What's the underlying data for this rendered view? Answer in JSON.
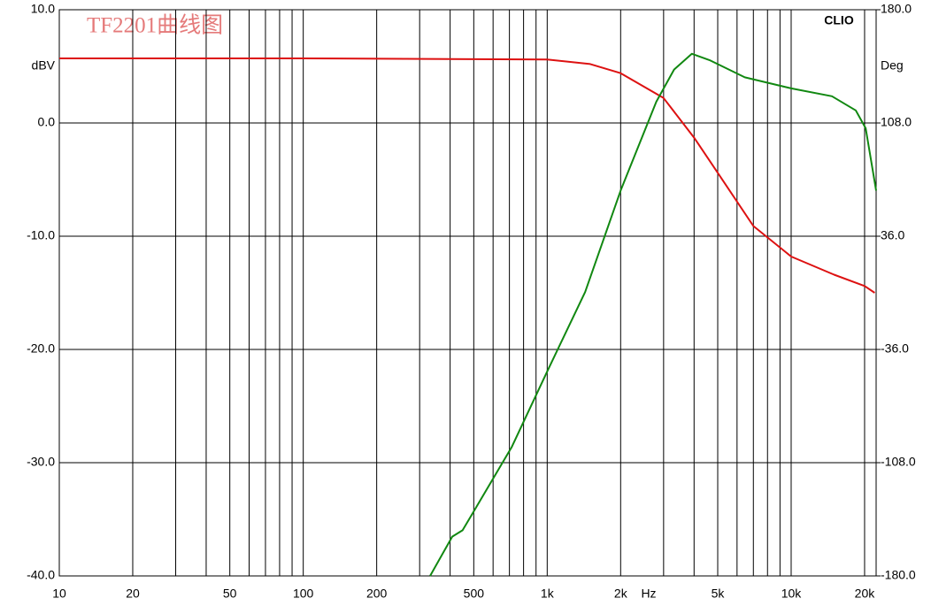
{
  "chart_data": {
    "type": "line",
    "title": "TF2201曲线图",
    "brand": "CLIO",
    "xlabel": "Hz",
    "ylabel": "dBV",
    "y2label": "Deg",
    "xscale": "log",
    "xlim": [
      10,
      22300
    ],
    "ylim": [
      -40,
      10
    ],
    "y2lim": [
      -180,
      180
    ],
    "xticks": [
      10,
      20,
      50,
      100,
      200,
      500,
      {
        "value": 1000,
        "label": "1k"
      },
      {
        "value": 2000,
        "label": "2k"
      },
      {
        "value": 5000,
        "label": "5k"
      },
      {
        "value": 10000,
        "label": "10k"
      },
      {
        "value": 20000,
        "label": "20k"
      }
    ],
    "xminor_grid": [
      30,
      40,
      60,
      70,
      80,
      90,
      300,
      400,
      600,
      700,
      800,
      900,
      3000,
      4000,
      6000,
      7000,
      8000,
      9000
    ],
    "yticks": [
      {
        "value": -40,
        "label": "-40.0"
      },
      {
        "value": -30,
        "label": "-30.0"
      },
      {
        "value": -20,
        "label": "-20.0"
      },
      {
        "value": -10,
        "label": "-10.0"
      },
      {
        "value": 0,
        "label": "0.0"
      },
      {
        "value": 10,
        "label": "10.0"
      }
    ],
    "y2ticks": [
      {
        "value": -180,
        "label": "-180.0"
      },
      {
        "value": -108,
        "label": "-108.0"
      },
      {
        "value": -36,
        "label": "-36.0"
      },
      {
        "value": 36,
        "label": "36.0"
      },
      {
        "value": 108,
        "label": "108.0"
      },
      {
        "value": 180,
        "label": "180.0"
      }
    ],
    "grid": true,
    "series": [
      {
        "color": "#dd1111",
        "x": [
          10,
          100,
          1000,
          1500,
          2000,
          3000,
          4000,
          5000,
          7000,
          10000,
          15000,
          20000,
          22000
        ],
        "values": [
          5.7,
          5.7,
          5.6,
          5.2,
          4.4,
          2.2,
          -1.3,
          -4.4,
          -9.1,
          -11.8,
          -13.4,
          -14.4,
          -15.0
        ]
      },
      {
        "color": "#118811",
        "axis": "y2",
        "x": [
          331,
          408,
          450,
          500,
          716,
          1000,
          1431,
          2000,
          2800,
          3311,
          3918,
          4624,
          6457,
          10000,
          14700,
          18400,
          20200,
          22300
        ],
        "values": [
          -180,
          -155,
          -151,
          -139,
          -98,
          -50,
          0.5,
          65,
          121.5,
          142,
          152,
          148,
          137,
          130,
          125,
          116,
          104.6,
          65
        ]
      }
    ]
  }
}
